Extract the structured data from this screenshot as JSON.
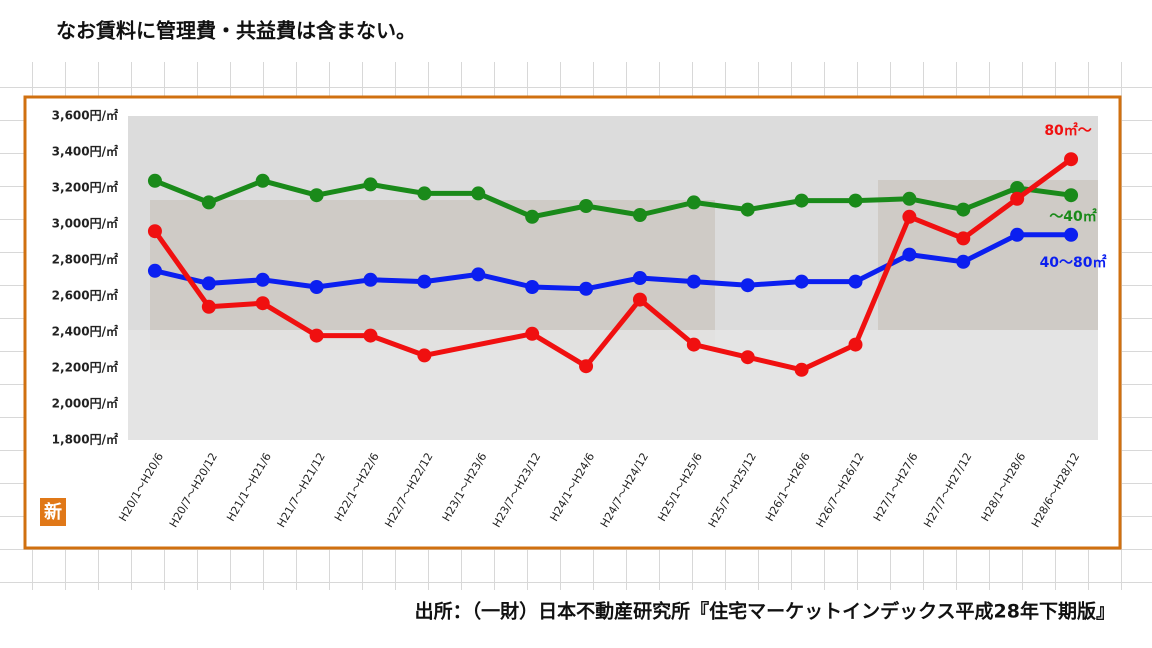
{
  "note": "なお賃料に管理費・共益費は含まない。",
  "source": "出所：（一財）日本不動産研究所『住宅マーケットインデックス平成28年下期版』",
  "badge": "新",
  "chart_data": {
    "type": "line",
    "categories": [
      "H20/1～H20/6",
      "H20/7～H20/12",
      "H21/1～H21/6",
      "H21/7～H21/12",
      "H22/1～H22/6",
      "H22/7～H22/12",
      "H23/1～H23/6",
      "H23/7～H23/12",
      "H24/1～H24/6",
      "H24/7～H24/12",
      "H25/1～H25/6",
      "H25/7～H25/12",
      "H26/1～H26/6",
      "H26/7～H26/12",
      "H27/1～H27/6",
      "H27/7～H27/12",
      "H28/1～H28/6",
      "H28/6～H28/12"
    ],
    "series": [
      {
        "name": "～40㎡",
        "color": "#1a8a1a",
        "values": [
          3240,
          3120,
          3240,
          3160,
          3220,
          3170,
          3170,
          3040,
          3100,
          3050,
          3120,
          3080,
          3130,
          3130,
          3140,
          3080,
          3200,
          3160
        ]
      },
      {
        "name": "40～80㎡",
        "color": "#0b1ff0",
        "values": [
          2740,
          2670,
          2690,
          2650,
          2690,
          2680,
          2720,
          2650,
          2640,
          2700,
          2680,
          2660,
          2680,
          2680,
          2830,
          2790,
          2940,
          2940
        ]
      },
      {
        "name": "80㎡～",
        "color": "#f01010",
        "values": [
          2960,
          2540,
          2560,
          2380,
          2380,
          2270,
          null,
          2390,
          2210,
          2580,
          2330,
          2260,
          2190,
          2330,
          3040,
          2920,
          3140,
          3360
        ]
      }
    ],
    "ylim": [
      1800,
      3600
    ],
    "yticks": [
      {
        "value": 1800,
        "label": "1,800円/㎡"
      },
      {
        "value": 2000,
        "label": "2,000円/㎡"
      },
      {
        "value": 2200,
        "label": "2,200円/㎡"
      },
      {
        "value": 2400,
        "label": "2,400円/㎡"
      },
      {
        "value": 2600,
        "label": "2,600円/㎡"
      },
      {
        "value": 2800,
        "label": "2,800円/㎡"
      },
      {
        "value": 3000,
        "label": "3,000円/㎡"
      },
      {
        "value": 3200,
        "label": "3,200円/㎡"
      },
      {
        "value": 3400,
        "label": "3,400円/㎡"
      },
      {
        "value": 3600,
        "label": "3,600円/㎡"
      }
    ],
    "grid": false
  }
}
